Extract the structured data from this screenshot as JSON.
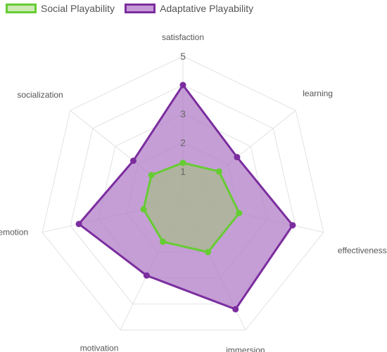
{
  "chart_data": {
    "type": "radar",
    "axes": [
      "satisfaction",
      "learning",
      "effectiveness",
      "immersion",
      "motivation",
      "emotion",
      "socialization"
    ],
    "r_max": 5,
    "ticks": [
      {
        "value": 1,
        "label": "1"
      },
      {
        "value": 2,
        "label": "2"
      },
      {
        "value": 3,
        "label": "3"
      },
      {
        "value": 4,
        "label": ""
      },
      {
        "value": 5,
        "label": "5"
      }
    ],
    "series": [
      {
        "name": "Adaptative Playability",
        "values": [
          4.0,
          2.4,
          3.9,
          4.2,
          2.9,
          3.7,
          2.2
        ],
        "stroke": "#7b2d9e",
        "fill": "#b27ec8",
        "point": "#7b2d9e"
      },
      {
        "name": "Social Playability",
        "values": [
          1.3,
          1.6,
          2.0,
          2.0,
          1.6,
          1.4,
          1.4
        ],
        "stroke": "#66cc33",
        "fill": "#a8b98e",
        "point": "#66cc33"
      }
    ],
    "legend_order": [
      1,
      0
    ],
    "legend_position": "top-left"
  }
}
